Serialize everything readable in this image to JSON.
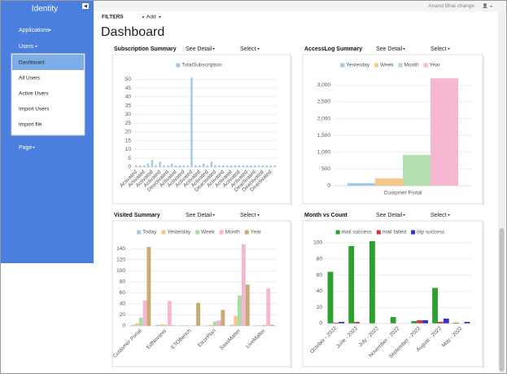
{
  "sidebar": {
    "brand": "Identity",
    "menu": [
      "Applications",
      "Users"
    ],
    "submenu": [
      "Dashboard",
      "All Users",
      "Active Users",
      "Import Users",
      "Import file"
    ],
    "page": "Page"
  },
  "topbar": {
    "user": "Anand Bhai change"
  },
  "toolbar": {
    "filters": "FILTERS",
    "add": "Add"
  },
  "page_title": "Dashboard",
  "panel_actions": {
    "detail": "See Detail",
    "select": "Select"
  },
  "chart_data": [
    {
      "type": "bar",
      "title": "Subscription Summary",
      "legend": "top",
      "grid": true,
      "categories": [
        "Activated",
        null,
        "Activated",
        null,
        "Activated",
        null,
        "Activated",
        null,
        "Deactivated",
        null,
        "Activated",
        null,
        "Activated",
        null,
        "Activated",
        null,
        "Activated",
        null,
        "Activated",
        null,
        "Deactivated",
        null,
        "Activated",
        null,
        "Activated",
        null,
        "Activated",
        null,
        "Activated",
        null,
        "Deactivated",
        null,
        "Deactivated",
        null,
        "Deactivated",
        null
      ],
      "series": [
        {
          "name": "TotalSubscription",
          "color": "#9ecae9",
          "values": [
            1,
            1,
            1,
            2,
            4,
            1,
            3,
            1,
            1,
            2,
            1,
            1,
            1,
            1,
            51,
            1,
            1,
            2,
            1,
            3,
            1,
            1,
            1,
            1,
            1,
            1,
            1,
            1,
            1,
            1,
            1,
            1,
            1,
            1,
            1,
            1
          ]
        }
      ],
      "ylim": [
        0,
        52
      ],
      "yticks": [
        0,
        5,
        10,
        15,
        20,
        25,
        30,
        35,
        40,
        45,
        50
      ]
    },
    {
      "type": "bar",
      "title": "AccessLog Summary",
      "legend": "top",
      "grid": true,
      "categories": [
        "Customer Portal"
      ],
      "series": [
        {
          "name": "Yesterday",
          "color": "#9ecae9",
          "values": [
            80
          ]
        },
        {
          "name": "Week",
          "color": "#f5c98c",
          "values": [
            220
          ]
        },
        {
          "name": "Month",
          "color": "#b3e0b3",
          "values": [
            920
          ]
        },
        {
          "name": "Year",
          "color": "#f7b6d2",
          "values": [
            3200
          ]
        }
      ],
      "ylim": [
        0,
        3300
      ],
      "yticks": [
        0,
        500,
        {
          "value": 1000,
          "label": "1,000"
        },
        {
          "value": 1500,
          "label": "1,500"
        },
        {
          "value": 2000,
          "label": "2,000"
        },
        {
          "value": 2500,
          "label": "2,500"
        },
        {
          "value": 3000,
          "label": "3,000"
        }
      ]
    },
    {
      "type": "bar",
      "title": "Visited Summary",
      "legend": "top",
      "grid": true,
      "categories": [
        "Customer Portal",
        "EdNovanis",
        "ETOBench",
        "EtcorPlan",
        "SaasMatter",
        "LiveMatter"
      ],
      "series": [
        {
          "name": "Today",
          "color": "#9ecae9",
          "values": [
            2,
            2,
            1,
            1,
            2,
            1
          ]
        },
        {
          "name": "Yesterday",
          "color": "#f5c98c",
          "values": [
            5,
            3,
            1,
            2,
            18,
            1
          ]
        },
        {
          "name": "Week",
          "color": "#a8dca8",
          "values": [
            15,
            2,
            1,
            8,
            55,
            2
          ]
        },
        {
          "name": "Month",
          "color": "#f7b6d2",
          "values": [
            46,
            45,
            1,
            10,
            148,
            68
          ]
        },
        {
          "name": "Year",
          "color": "#c9aa72",
          "values": [
            143,
            1,
            42,
            29,
            75,
            2
          ]
        }
      ],
      "ylim": [
        0,
        155
      ],
      "yticks": [
        0,
        20,
        40,
        60,
        80,
        100,
        120,
        140
      ]
    },
    {
      "type": "bar",
      "title": "Month vs Count",
      "legend": "top",
      "grid": true,
      "categories": [
        "October - 2022",
        "June - 2022",
        "July - 2022",
        "November - 2022",
        "September - 2022",
        "August - 2022",
        "May - 2022"
      ],
      "series": [
        {
          "name": "mail success",
          "color": "#2ca02c",
          "values": [
            64,
            96,
            102,
            8,
            3,
            44,
            1
          ]
        },
        {
          "name": "mail failed",
          "color": "#e03030",
          "values": [
            1,
            2,
            0,
            0,
            4,
            2,
            0
          ]
        },
        {
          "name": "otp success",
          "color": "#3030e0",
          "values": [
            2,
            0,
            0,
            0,
            4,
            6,
            2
          ]
        }
      ],
      "ylim": [
        0,
        105
      ],
      "yticks": [
        0,
        20,
        40,
        60,
        80,
        100
      ]
    }
  ]
}
